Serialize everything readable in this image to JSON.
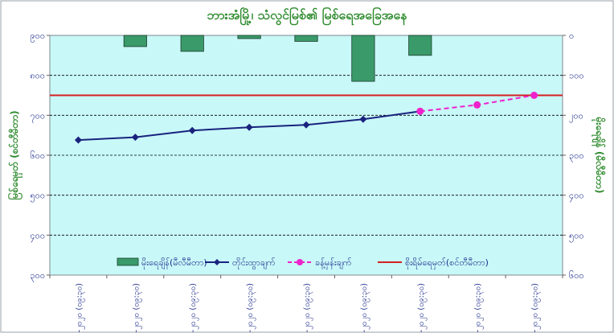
{
  "chart_data": {
    "type": "line",
    "title": "ဘားအံမြို့၊ သံလွင်မြစ်၏ မြစ်ရေအခြေအနေ",
    "ylabel": "မြစ်ရေမှတ် (စင်တီမီတာ)",
    "y2label": "မိုးရေချိန် (မီလီမီတာ)",
    "categories": [
      "၂၈-၂-၂၀၂၀ (၀၉:၃၀)",
      "၂၉-၂-၂၀၂၀ (၀၉:၃၀)",
      "၁-၃-၂၀၂၀ (၀၉:၃၀)",
      "၂-၃-၂၀၂၀ (၀၉:၃၀)",
      "၃-၃-၂၀၂၀ (၀၉:၃၀)",
      "၄-၃-၂၀၂၀ (၀၉:၃၀)",
      "၅-၃-၂၀၂၀ (၀၉:၃၀)",
      "၆-၃-၂၀၂၀ (၀၉:၃၀)",
      "၇-၃-၂၀၂၀ (၀၉:၃၀)"
    ],
    "ylim": [
      300,
      900
    ],
    "yticks": [
      300,
      400,
      500,
      600,
      700,
      800,
      900
    ],
    "ytick_labels": [
      "၃၀၀",
      "၄၀၀",
      "၅၀၀",
      "၆၀၀",
      "၇၀၀",
      "၈၀၀",
      "၉၀၀"
    ],
    "y2lim": [
      0,
      600
    ],
    "y2ticks": [
      0,
      100,
      200,
      300,
      400,
      500,
      600
    ],
    "y2tick_labels": [
      "၀",
      "၁၀၀",
      "၂၀၀",
      "၃၀၀",
      "၄၀၀",
      "၅၀၀",
      "၆၀၀"
    ],
    "y2_inverted": true,
    "series": [
      {
        "name": "မိုးရေချိန်(မီလီမီတာ)",
        "type": "bar",
        "axis": "right",
        "color": "#3a9a6a",
        "values": [
          0,
          28,
          40,
          8,
          15,
          115,
          50,
          0,
          0
        ]
      },
      {
        "name": "တိုင်းထွာချက်",
        "type": "line",
        "color": "#1a237e",
        "marker": "diamond",
        "values": [
          638,
          645,
          662,
          670,
          676,
          690,
          710,
          null,
          null
        ]
      },
      {
        "name": "ခန့်မှန်းချက်",
        "type": "line",
        "dashed": true,
        "color": "#ee22cc",
        "marker": "circle",
        "values": [
          null,
          null,
          null,
          null,
          null,
          null,
          710,
          726,
          750
        ]
      },
      {
        "name": "စိုးရိမ်ရေမှတ်(စင်တီမီတာ)",
        "type": "hline",
        "color": "#d42020",
        "value": 750
      }
    ],
    "grid": true,
    "legend_position": "bottom"
  }
}
